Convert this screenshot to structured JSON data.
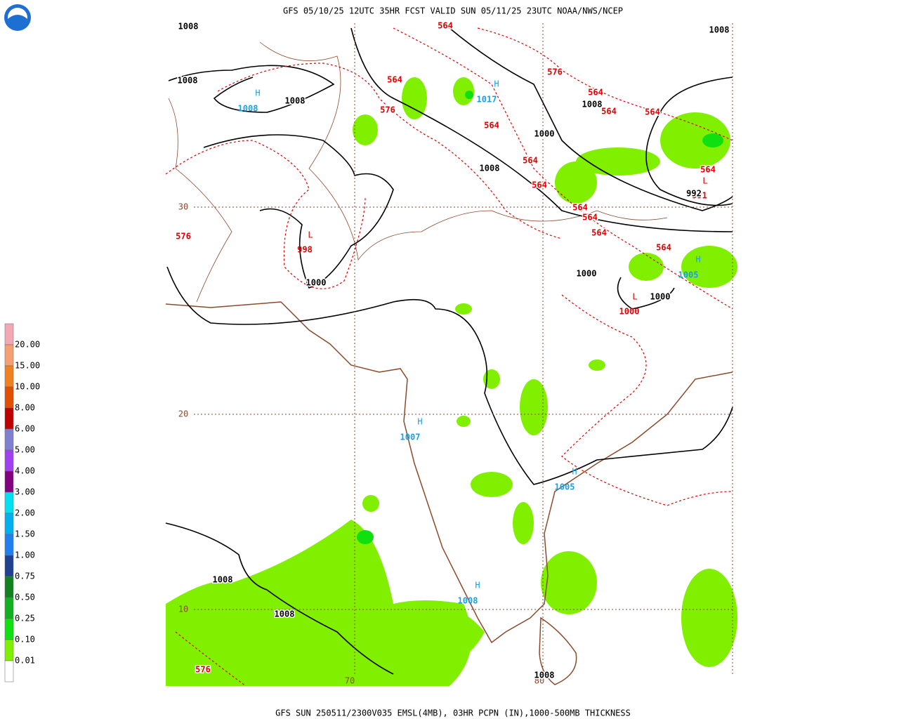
{
  "header": {
    "title": "GFS 05/10/25 12UTC 35HR FCST VALID SUN 05/11/25 23UTC NOAA/NWS/NCEP"
  },
  "footer": {
    "caption": "GFS SUN 250511/2300V035 EMSL(4MB), 03HR PCPN (IN),1000-500MB THICKNESS"
  },
  "legend": {
    "levels": [
      "20.00",
      "15.00",
      "10.00",
      "8.00",
      "6.00",
      "5.00",
      "4.00",
      "3.00",
      "2.00",
      "1.50",
      "1.00",
      "0.75",
      "0.50",
      "0.25",
      "0.10",
      "0.01"
    ],
    "colors": [
      "#f4a8b4",
      "#f4a070",
      "#f08020",
      "#e05000",
      "#c00000",
      "#8080d0",
      "#a040f0",
      "#800080",
      "#00e0f0",
      "#00b0f0",
      "#2080f0",
      "#204090",
      "#108020",
      "#10b020",
      "#10e010",
      "#80f000",
      "#ffffff"
    ]
  },
  "map": {
    "latitudes": [
      "30",
      "20",
      "10"
    ],
    "longitudes": [
      "70",
      "80"
    ],
    "highs": [
      {
        "symbol": "H",
        "value": "1008"
      },
      {
        "symbol": "H",
        "value": "1017"
      },
      {
        "symbol": "H",
        "value": "1007"
      },
      {
        "symbol": "H",
        "value": "1005"
      },
      {
        "symbol": "H",
        "value": "1008"
      },
      {
        "symbol": "H",
        "value": "1005"
      }
    ],
    "lows": [
      {
        "symbol": "L",
        "value": "998"
      },
      {
        "symbol": "L",
        "value": "991"
      },
      {
        "symbol": "L",
        "value": "1000"
      }
    ],
    "isobar_labels": [
      "1008",
      "1008",
      "1008",
      "1008",
      "1008",
      "1000",
      "1008",
      "992",
      "1000",
      "1000",
      "1000",
      "1008",
      "1008",
      "1008"
    ],
    "thickness_labels": [
      "564",
      "564",
      "576",
      "564",
      "564",
      "564",
      "564",
      "564",
      "564",
      "564",
      "564",
      "564",
      "564",
      "564",
      "576",
      "576",
      "576"
    ]
  }
}
